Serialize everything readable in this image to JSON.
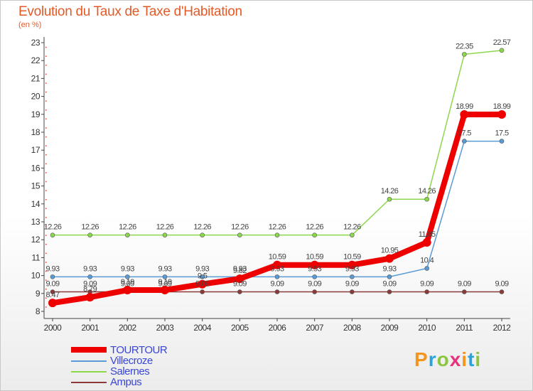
{
  "header": {
    "title": "Evolution du Taux de Taxe d'Habitation",
    "subtitle": "(en %)"
  },
  "chart_data": {
    "type": "line",
    "title": "Evolution du Taux de Taxe d'Habitation",
    "ylabel": "(en %)",
    "xlabel": "",
    "x": [
      "2000",
      "2001",
      "2002",
      "2003",
      "2004",
      "2005",
      "2006",
      "2007",
      "2008",
      "2009",
      "2010",
      "2011",
      "2012"
    ],
    "yticks": [
      8,
      9,
      10,
      11,
      12,
      13,
      14,
      15,
      16,
      17,
      18,
      19,
      20,
      21,
      22,
      23
    ],
    "ylim": [
      8,
      23
    ],
    "grid": false,
    "legend_position": "bottom-left",
    "series": [
      {
        "name": "TOURTOUR",
        "color": "#ee0000",
        "values": [
          8.47,
          8.79,
          9.19,
          9.19,
          9.52,
          9.82,
          10.59,
          10.59,
          10.59,
          10.95,
          11.85,
          18.99,
          18.99
        ],
        "labels": [
          "8.47",
          "8.79",
          "9.19",
          "9.19",
          "9.5",
          "9.82",
          "10.59",
          "10.59",
          "10.59",
          "10.95",
          "11.85",
          "18.99",
          "18.99"
        ]
      },
      {
        "name": "Villecroze",
        "color": "#5b9bd5",
        "values": [
          9.93,
          9.93,
          9.93,
          9.93,
          9.93,
          9.93,
          9.93,
          9.93,
          9.93,
          9.93,
          10.4,
          17.5,
          17.5
        ],
        "labels": [
          "9.93",
          "9.93",
          "9.93",
          "9.93",
          "9.93",
          "9.93",
          "9.93",
          "9.93",
          "9.93",
          "9.93",
          "10.4",
          "17.5",
          "17.5"
        ]
      },
      {
        "name": "Salernes",
        "color": "#8cd84d",
        "values": [
          12.26,
          12.26,
          12.26,
          12.26,
          12.26,
          12.26,
          12.26,
          12.26,
          12.26,
          14.26,
          14.26,
          22.35,
          22.57
        ],
        "labels": [
          "12.26",
          "12.26",
          "12.26",
          "12.26",
          "12.26",
          "12.26",
          "12.26",
          "12.26",
          "12.26",
          "14.26",
          "14.26",
          "22.35",
          "22.57"
        ]
      },
      {
        "name": "Ampus",
        "color": "#8b3a3a",
        "values": [
          9.09,
          9.09,
          9.09,
          9.09,
          9.09,
          9.09,
          9.09,
          9.09,
          9.09,
          9.09,
          9.09,
          9.09,
          9.09
        ],
        "labels": [
          "9.09",
          "9.09",
          "9.09",
          "9.09",
          "9.09",
          "9.09",
          "9.09",
          "9.09",
          "9.09",
          "9.09",
          "9.09",
          "9.09",
          "9.09"
        ]
      }
    ]
  },
  "legend": {
    "items": [
      "TOURTOUR",
      "Villecroze",
      "Salernes",
      "Ampus"
    ]
  },
  "logo": {
    "letters": [
      "P",
      "r",
      "o",
      "x",
      "i",
      "t",
      "i"
    ],
    "colors": [
      "#f7941d",
      "#2aa3dc",
      "#8cc63f",
      "#e8327c",
      "#f7941d",
      "#2aa3dc",
      "#8cc63f"
    ]
  }
}
